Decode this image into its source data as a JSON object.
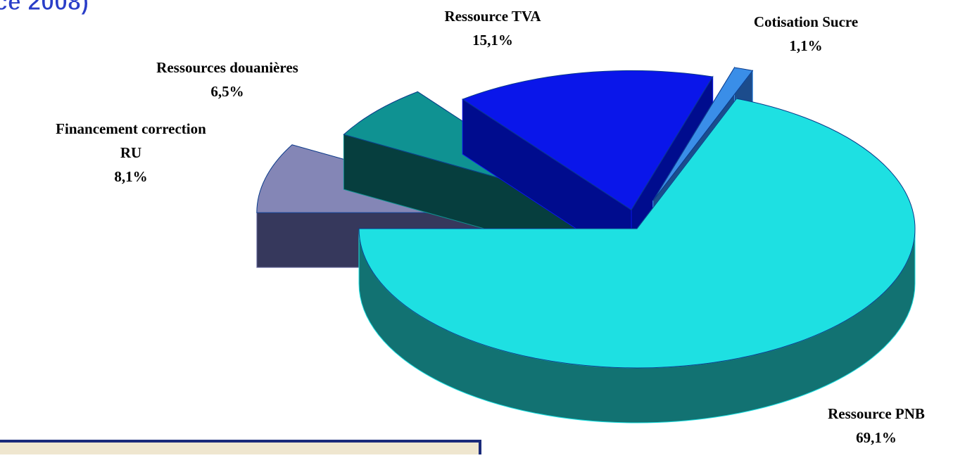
{
  "chart_data": {
    "type": "pie",
    "title": "ce 2008)",
    "categories": [
      "Ressource PNB",
      "Cotisation Sucre",
      "Ressource TVA",
      "Ressources douanières",
      [
        "Financement correction",
        "RU"
      ]
    ],
    "values": [
      69.1,
      1.1,
      15.1,
      6.5,
      8.1
    ],
    "value_labels": [
      "69,1%",
      "1,1%",
      "15,1%",
      "6,5%",
      "8,1%"
    ],
    "colors": [
      "#1ee0e2",
      "#3a8ee8",
      "#0a16ea",
      "#0f9292",
      "#8486b6"
    ],
    "side_colors": [
      "#127272",
      "#1c4c8c",
      "#000c8e",
      "#063e3e",
      "#36385c"
    ]
  }
}
